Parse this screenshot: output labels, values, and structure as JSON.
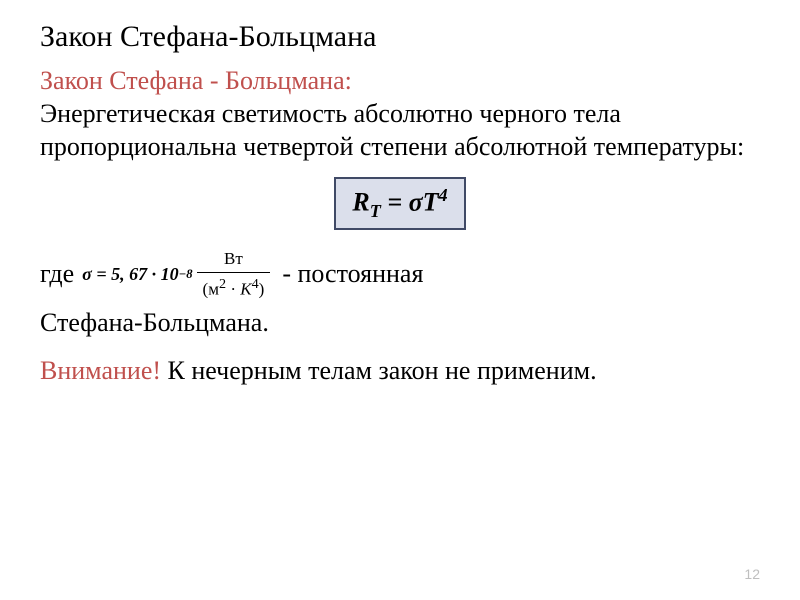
{
  "colors": {
    "accent": "#c0504d",
    "text": "#000000",
    "formula_bg": "#dbdfeb",
    "formula_border": "#404a66",
    "pagenum": "#bfbfbf",
    "background": "#ffffff"
  },
  "title": "Закон Стефана-Больцмана",
  "subtitle": "Закон Стефана - Больцмана:",
  "body1": "Энергетическая светимость абсолютно черного тела пропорциональна четвертой степени абсолютной температуры:",
  "formula": {
    "lhs_var": "R",
    "lhs_sub": "T",
    "eq": " = ",
    "rhs_coef": "σT",
    "rhs_sup": "4"
  },
  "sigma_line": {
    "prefix": "где",
    "sigma_lhs": "σ = 5, 67 · 10",
    "sigma_exp": "−8",
    "unit_num": "Вт",
    "unit_den_m": "м",
    "unit_den_m_sup": "2",
    "unit_dot": " · ",
    "unit_den_K": "K",
    "unit_den_K_sup": "4",
    "suffix": "  - постоянная"
  },
  "sigma_line2": "Стефана-Больцмана.",
  "warn_label": "Внимание!",
  "warn_text": " К нечерным телам закон не применим.",
  "page_num": "12"
}
